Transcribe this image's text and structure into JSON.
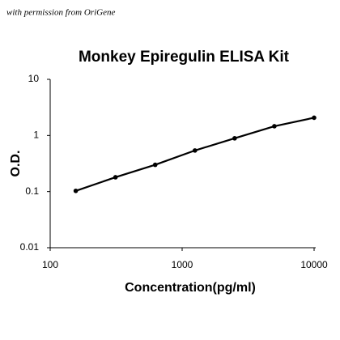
{
  "chart_data": {
    "type": "scatter",
    "title": "Monkey Epiregulin ELISA Kit",
    "annotation": "with permission from OriGene",
    "x_label": "Concentration(pg/ml)",
    "y_label": "O.D.",
    "x": [
      156.25,
      312.5,
      625,
      1250,
      2500,
      5000,
      10000
    ],
    "series": [
      {
        "color": "#000000",
        "values": [
          0.103,
          0.18,
          0.3,
          0.54,
          0.89,
          1.46,
          2.07
        ]
      }
    ],
    "line": true,
    "xlog": true,
    "ylog": true,
    "xlim": [
      100,
      10000
    ],
    "ylim": [
      0.01,
      10
    ],
    "xticks": [
      100,
      1000,
      10000
    ],
    "yticks": [
      0.01,
      0.1,
      1,
      10
    ],
    "grid": false
  }
}
